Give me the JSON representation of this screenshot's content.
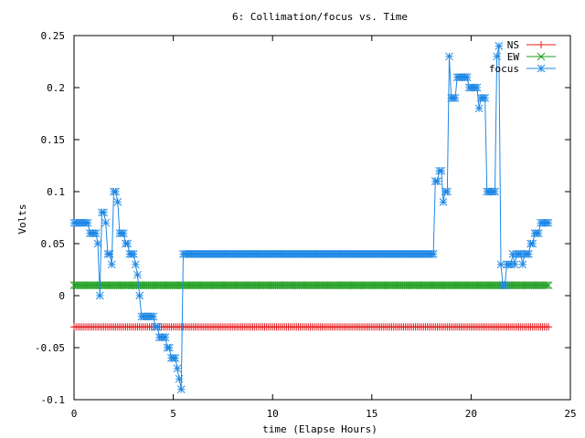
{
  "chart_data": {
    "type": "line",
    "title": "6: Collimation/focus vs. Time",
    "xlabel": "time (Elapse Hours)",
    "ylabel": "Volts",
    "xlim": [
      0,
      25
    ],
    "ylim": [
      -0.1,
      0.25
    ],
    "xticks": [
      0,
      5,
      10,
      15,
      20,
      25
    ],
    "xtick_labels": [
      "0",
      "5",
      "10",
      "15",
      "20",
      "25"
    ],
    "yticks": [
      -0.1,
      -0.05,
      0,
      0.05,
      0.1,
      0.15,
      0.2,
      0.25
    ],
    "ytick_labels": [
      "-0.1",
      "-0.05",
      "0",
      "0.05",
      "0.1",
      "0.15",
      "0.2",
      "0.25"
    ],
    "grid": false,
    "legend_position": "top-right",
    "series": [
      {
        "name": "NS",
        "color": "#e41a1c",
        "marker": "plus",
        "sample_step": 0.1,
        "x_start": 0.0,
        "x_end": 23.9,
        "constant_value": -0.03
      },
      {
        "name": "EW",
        "color": "#1e9e1e",
        "marker": "cross",
        "sample_step": 0.1,
        "x_start": 0.0,
        "x_end": 23.9,
        "constant_value": 0.01
      },
      {
        "name": "focus",
        "color": "#1e88e5",
        "marker": "star",
        "sample_step": 0.1,
        "points": [
          [
            0.0,
            0.07
          ],
          [
            0.1,
            0.07
          ],
          [
            0.2,
            0.07
          ],
          [
            0.3,
            0.07
          ],
          [
            0.4,
            0.07
          ],
          [
            0.5,
            0.07
          ],
          [
            0.6,
            0.07
          ],
          [
            0.7,
            0.07
          ],
          [
            0.8,
            0.06
          ],
          [
            0.9,
            0.06
          ],
          [
            1.0,
            0.06
          ],
          [
            1.1,
            0.06
          ],
          [
            1.2,
            0.05
          ],
          [
            1.3,
            0.0
          ],
          [
            1.4,
            0.08
          ],
          [
            1.5,
            0.08
          ],
          [
            1.6,
            0.07
          ],
          [
            1.7,
            0.04
          ],
          [
            1.8,
            0.04
          ],
          [
            1.9,
            0.03
          ],
          [
            2.0,
            0.1
          ],
          [
            2.1,
            0.1
          ],
          [
            2.2,
            0.09
          ],
          [
            2.3,
            0.06
          ],
          [
            2.4,
            0.06
          ],
          [
            2.5,
            0.06
          ],
          [
            2.6,
            0.05
          ],
          [
            2.7,
            0.05
          ],
          [
            2.8,
            0.04
          ],
          [
            2.9,
            0.04
          ],
          [
            3.0,
            0.04
          ],
          [
            3.1,
            0.03
          ],
          [
            3.2,
            0.02
          ],
          [
            3.3,
            0.0
          ],
          [
            3.4,
            -0.02
          ],
          [
            3.5,
            -0.02
          ],
          [
            3.6,
            -0.02
          ],
          [
            3.7,
            -0.02
          ],
          [
            3.8,
            -0.02
          ],
          [
            3.9,
            -0.02
          ],
          [
            4.0,
            -0.02
          ],
          [
            4.1,
            -0.03
          ],
          [
            4.2,
            -0.03
          ],
          [
            4.3,
            -0.04
          ],
          [
            4.4,
            -0.04
          ],
          [
            4.5,
            -0.04
          ],
          [
            4.6,
            -0.04
          ],
          [
            4.7,
            -0.05
          ],
          [
            4.8,
            -0.05
          ],
          [
            4.9,
            -0.06
          ],
          [
            5.0,
            -0.06
          ],
          [
            5.1,
            -0.06
          ],
          [
            5.2,
            -0.07
          ],
          [
            5.3,
            -0.08
          ],
          [
            5.4,
            -0.09
          ],
          [
            5.5,
            0.04
          ],
          [
            6.0,
            0.04
          ],
          [
            7.0,
            0.04
          ],
          [
            8.0,
            0.04
          ],
          [
            9.0,
            0.04
          ],
          [
            10.0,
            0.04
          ],
          [
            11.0,
            0.04
          ],
          [
            12.0,
            0.04
          ],
          [
            13.0,
            0.04
          ],
          [
            14.0,
            0.04
          ],
          [
            15.0,
            0.04
          ],
          [
            16.0,
            0.04
          ],
          [
            17.0,
            0.04
          ],
          [
            18.0,
            0.04
          ],
          [
            18.1,
            0.04
          ],
          [
            18.2,
            0.11
          ],
          [
            18.3,
            0.11
          ],
          [
            18.4,
            0.12
          ],
          [
            18.5,
            0.12
          ],
          [
            18.6,
            0.09
          ],
          [
            18.7,
            0.1
          ],
          [
            18.8,
            0.1
          ],
          [
            18.9,
            0.23
          ],
          [
            19.0,
            0.19
          ],
          [
            19.1,
            0.19
          ],
          [
            19.2,
            0.19
          ],
          [
            19.3,
            0.21
          ],
          [
            19.4,
            0.21
          ],
          [
            19.5,
            0.21
          ],
          [
            19.6,
            0.21
          ],
          [
            19.7,
            0.21
          ],
          [
            19.8,
            0.21
          ],
          [
            19.9,
            0.2
          ],
          [
            20.0,
            0.2
          ],
          [
            20.1,
            0.2
          ],
          [
            20.2,
            0.2
          ],
          [
            20.3,
            0.2
          ],
          [
            20.4,
            0.18
          ],
          [
            20.5,
            0.19
          ],
          [
            20.6,
            0.19
          ],
          [
            20.7,
            0.19
          ],
          [
            20.8,
            0.1
          ],
          [
            20.9,
            0.1
          ],
          [
            21.0,
            0.1
          ],
          [
            21.1,
            0.1
          ],
          [
            21.2,
            0.1
          ],
          [
            21.3,
            0.23
          ],
          [
            21.4,
            0.24
          ],
          [
            21.5,
            0.03
          ],
          [
            21.6,
            0.01
          ],
          [
            21.7,
            0.01
          ],
          [
            21.8,
            0.03
          ],
          [
            21.9,
            0.03
          ],
          [
            22.0,
            0.03
          ],
          [
            22.1,
            0.04
          ],
          [
            22.2,
            0.03
          ],
          [
            22.3,
            0.04
          ],
          [
            22.4,
            0.04
          ],
          [
            22.5,
            0.04
          ],
          [
            22.6,
            0.03
          ],
          [
            22.7,
            0.04
          ],
          [
            22.8,
            0.04
          ],
          [
            22.9,
            0.04
          ],
          [
            23.0,
            0.05
          ],
          [
            23.1,
            0.05
          ],
          [
            23.2,
            0.06
          ],
          [
            23.3,
            0.06
          ],
          [
            23.4,
            0.06
          ],
          [
            23.5,
            0.07
          ],
          [
            23.6,
            0.07
          ],
          [
            23.7,
            0.07
          ],
          [
            23.8,
            0.07
          ],
          [
            23.9,
            0.07
          ]
        ]
      }
    ]
  }
}
